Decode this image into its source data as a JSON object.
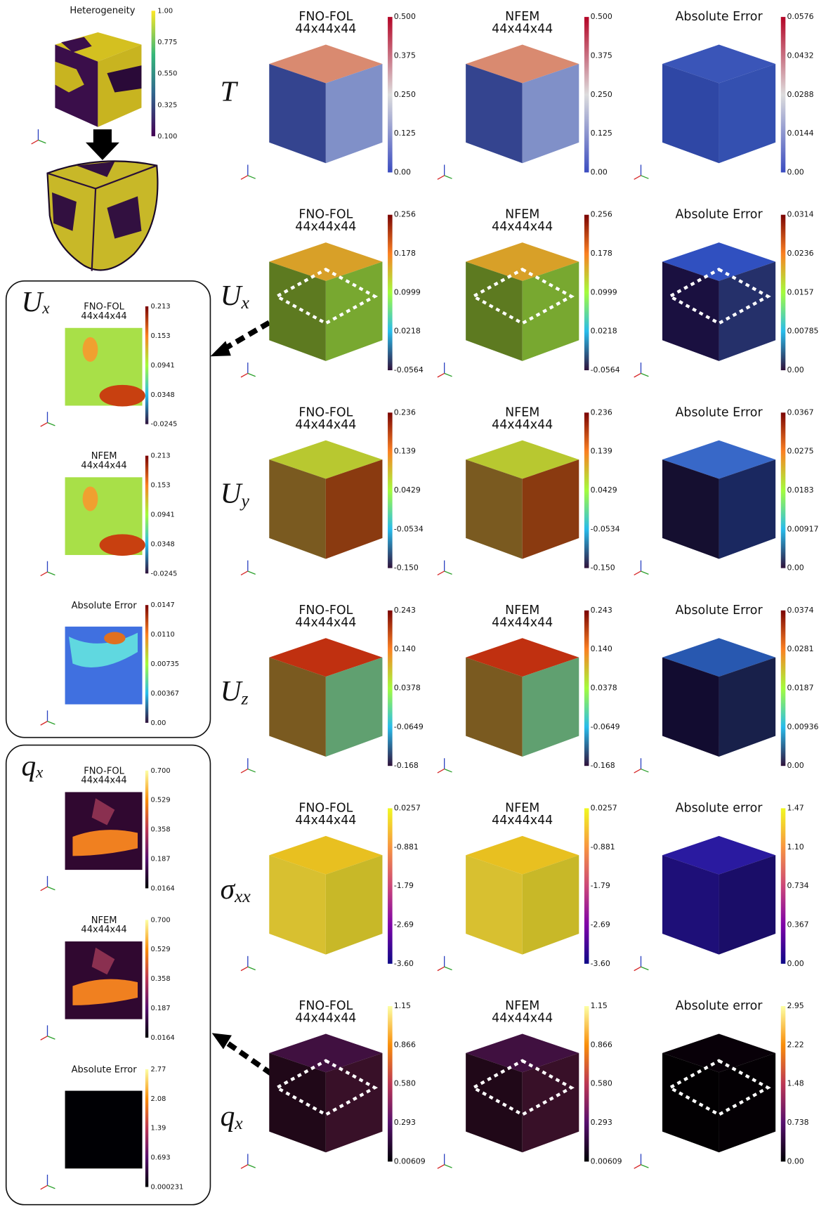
{
  "heterogeneity": {
    "title": "Heterogeneity",
    "colorbar_ticks": [
      "1.00",
      "0.775",
      "0.550",
      "0.325",
      "0.100"
    ]
  },
  "rows": [
    {
      "label": {
        "base": "T"
      },
      "panels": [
        {
          "title": [
            "FNO-FOL",
            "44x44x44"
          ],
          "ticks": [
            "0.500",
            "0.375",
            "0.250",
            "0.125",
            "0.00"
          ]
        },
        {
          "title": [
            "NFEM",
            "44x44x44"
          ],
          "ticks": [
            "0.500",
            "0.375",
            "0.250",
            "0.125",
            "0.00"
          ]
        },
        {
          "title": [
            "Absolute Error"
          ],
          "ticks": [
            "0.0576",
            "0.0432",
            "0.0288",
            "0.0144",
            "0.00"
          ]
        }
      ]
    },
    {
      "label": {
        "base": "U",
        "sub": "x"
      },
      "panels": [
        {
          "title": [
            "FNO-FOL",
            "44x44x44"
          ],
          "ticks": [
            "0.256",
            "0.178",
            "0.0999",
            "0.0218",
            "-0.0564"
          ]
        },
        {
          "title": [
            "NFEM",
            "44x44x44"
          ],
          "ticks": [
            "0.256",
            "0.178",
            "0.0999",
            "0.0218",
            "-0.0564"
          ]
        },
        {
          "title": [
            "Absolute Error"
          ],
          "ticks": [
            "0.0314",
            "0.0236",
            "0.0157",
            "0.00785",
            "0.00"
          ]
        }
      ]
    },
    {
      "label": {
        "base": "U",
        "sub": "y"
      },
      "panels": [
        {
          "title": [
            "FNO-FOL",
            "44x44x44"
          ],
          "ticks": [
            "0.236",
            "0.139",
            "0.0429",
            "-0.0534",
            "-0.150"
          ]
        },
        {
          "title": [
            "NFEM",
            "44x44x44"
          ],
          "ticks": [
            "0.236",
            "0.139",
            "0.0429",
            "-0.0534",
            "-0.150"
          ]
        },
        {
          "title": [
            "Absolute Error"
          ],
          "ticks": [
            "0.0367",
            "0.0275",
            "0.0183",
            "0.00917",
            "0.00"
          ]
        }
      ]
    },
    {
      "label": {
        "base": "U",
        "sub": "z"
      },
      "panels": [
        {
          "title": [
            "FNO-FOL",
            "44x44x44"
          ],
          "ticks": [
            "0.243",
            "0.140",
            "0.0378",
            "-0.0649",
            "-0.168"
          ]
        },
        {
          "title": [
            "NFEM",
            "44x44x44"
          ],
          "ticks": [
            "0.243",
            "0.140",
            "0.0378",
            "-0.0649",
            "-0.168"
          ]
        },
        {
          "title": [
            "Absolute Error"
          ],
          "ticks": [
            "0.0374",
            "0.0281",
            "0.0187",
            "0.00936",
            "0.00"
          ]
        }
      ]
    },
    {
      "label": {
        "base": "σ",
        "sub": "xx"
      },
      "panels": [
        {
          "title": [
            "FNO-FOL",
            "44x44x44"
          ],
          "ticks": [
            "0.0257",
            "-0.881",
            "-1.79",
            "-2.69",
            "-3.60"
          ]
        },
        {
          "title": [
            "NFEM",
            "44x44x44"
          ],
          "ticks": [
            "0.0257",
            "-0.881",
            "-1.79",
            "-2.69",
            "-3.60"
          ]
        },
        {
          "title": [
            "Absolute error"
          ],
          "ticks": [
            "1.47",
            "1.10",
            "0.734",
            "0.367",
            "0.00"
          ]
        }
      ]
    },
    {
      "label": {
        "base": "q",
        "sub": "x"
      },
      "panels": [
        {
          "title": [
            "FNO-FOL",
            "44x44x44"
          ],
          "ticks": [
            "1.15",
            "0.866",
            "0.580",
            "0.293",
            "0.00609"
          ]
        },
        {
          "title": [
            "NFEM",
            "44x44x44"
          ],
          "ticks": [
            "1.15",
            "0.866",
            "0.580",
            "0.293",
            "0.00609"
          ]
        },
        {
          "title": [
            "Absolute error"
          ],
          "ticks": [
            "2.95",
            "2.22",
            "1.48",
            "0.738",
            "0.00"
          ]
        }
      ]
    }
  ],
  "insets": [
    {
      "label": {
        "base": "U",
        "sub": "x"
      },
      "panels": [
        {
          "title": [
            "FNO-FOL",
            "44x44x44"
          ],
          "ticks": [
            "0.213",
            "0.153",
            "0.0941",
            "0.0348",
            "-0.0245"
          ]
        },
        {
          "title": [
            "NFEM",
            "44x44x44"
          ],
          "ticks": [
            "0.213",
            "0.153",
            "0.0941",
            "0.0348",
            "-0.0245"
          ]
        },
        {
          "title": [
            "Absolute Error"
          ],
          "ticks": [
            "0.0147",
            "0.0110",
            "0.00735",
            "0.00367",
            "0.00"
          ]
        }
      ]
    },
    {
      "label": {
        "base": "q",
        "sub": "x"
      },
      "panels": [
        {
          "title": [
            "FNO-FOL",
            "44x44x44"
          ],
          "ticks": [
            "0.700",
            "0.529",
            "0.358",
            "0.187",
            "0.0164"
          ]
        },
        {
          "title": [
            "NFEM",
            "44x44x44"
          ],
          "ticks": [
            "0.700",
            "0.529",
            "0.358",
            "0.187",
            "0.0164"
          ]
        },
        {
          "title": [
            "Absolute Error"
          ],
          "ticks": [
            "2.77",
            "2.08",
            "1.39",
            "0.693",
            "0.000231"
          ]
        }
      ]
    }
  ]
}
